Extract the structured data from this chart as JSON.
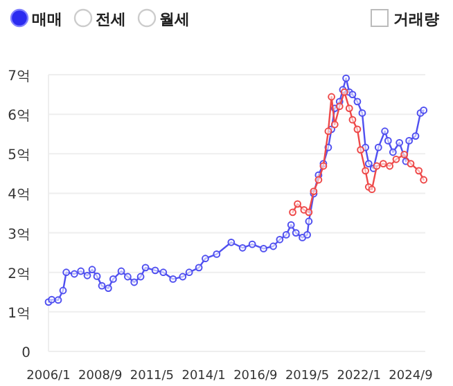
{
  "chart_data": {
    "type": "line",
    "marker": "circle",
    "grid": "y",
    "annotations": [
      "매매",
      "전세",
      "월세",
      "거래량"
    ],
    "xlim": [
      "2006-01",
      "2025-06"
    ],
    "xticks": [
      {
        "value": "2006-01",
        "label": "2006/1"
      },
      {
        "value": "2008-09",
        "label": "2008/9"
      },
      {
        "value": "2011-05",
        "label": "2011/5"
      },
      {
        "value": "2014-01",
        "label": "2014/1"
      },
      {
        "value": "2016-09",
        "label": "2016/9"
      },
      {
        "value": "2019-05",
        "label": "2019/5"
      },
      {
        "value": "2022-01",
        "label": "2022/1"
      },
      {
        "value": "2024-09",
        "label": "2024/9"
      }
    ],
    "ylim": [
      0,
      7
    ],
    "yticks": [
      0,
      {
        "value": 1,
        "label": "1억"
      },
      {
        "value": 2,
        "label": "2억"
      },
      {
        "value": 3,
        "label": "3억"
      },
      {
        "value": 4,
        "label": "4억"
      },
      {
        "value": 5,
        "label": "5억"
      },
      {
        "value": 6,
        "label": "6억"
      },
      {
        "value": 7,
        "label": "7억"
      }
    ],
    "series": [
      {
        "color": "#4f4ff0",
        "x": [
          "2006-01",
          "2006-03",
          "2006-07",
          "2006-10",
          "2006-12",
          "2007-05",
          "2007-09",
          "2008-01",
          "2008-04",
          "2008-07",
          "2008-10",
          "2009-02",
          "2009-05",
          "2009-10",
          "2010-02",
          "2010-06",
          "2010-10",
          "2011-01",
          "2011-07",
          "2011-12",
          "2012-06",
          "2012-12",
          "2013-04",
          "2013-10",
          "2014-02",
          "2014-09",
          "2015-06",
          "2016-01",
          "2016-07",
          "2017-02",
          "2017-08",
          "2017-12",
          "2018-04",
          "2018-07",
          "2018-10",
          "2019-02",
          "2019-05",
          "2019-06",
          "2019-09",
          "2019-12",
          "2020-03",
          "2020-06",
          "2020-08",
          "2020-10",
          "2021-01",
          "2021-03",
          "2021-05",
          "2021-07",
          "2021-09",
          "2021-12",
          "2022-03",
          "2022-05",
          "2022-07",
          "2022-10",
          "2023-01",
          "2023-05",
          "2023-07",
          "2023-10",
          "2024-02",
          "2024-06",
          "2024-08",
          "2024-12",
          "2025-03",
          "2025-05"
        ],
        "values": [
          1.25,
          1.31,
          1.3,
          1.54,
          2.0,
          1.96,
          2.03,
          1.92,
          2.07,
          1.9,
          1.66,
          1.6,
          1.83,
          2.03,
          1.89,
          1.75,
          1.89,
          2.12,
          2.05,
          2.0,
          1.83,
          1.89,
          2.0,
          2.12,
          2.35,
          2.46,
          2.76,
          2.62,
          2.71,
          2.6,
          2.66,
          2.83,
          2.95,
          3.2,
          3.0,
          2.88,
          2.95,
          3.29,
          3.99,
          4.46,
          4.75,
          5.16,
          5.62,
          6.15,
          6.32,
          6.62,
          6.91,
          6.56,
          6.5,
          6.32,
          6.03,
          5.16,
          4.75,
          4.63,
          5.16,
          5.57,
          5.33,
          5.04,
          5.28,
          4.81,
          5.33,
          5.45,
          6.03,
          6.1
        ]
      },
      {
        "color": "#ee4848",
        "x": [
          "2018-08",
          "2018-11",
          "2019-03",
          "2019-06",
          "2019-09",
          "2019-12",
          "2020-03",
          "2020-06",
          "2020-08",
          "2020-10",
          "2021-01",
          "2021-04",
          "2021-07",
          "2021-09",
          "2021-12",
          "2022-02",
          "2022-05",
          "2022-07",
          "2022-09",
          "2022-12",
          "2023-04",
          "2023-08",
          "2023-12",
          "2024-05",
          "2024-09",
          "2025-02",
          "2025-05"
        ],
        "values": [
          3.52,
          3.73,
          3.58,
          3.52,
          4.05,
          4.34,
          4.69,
          5.57,
          6.44,
          5.74,
          6.2,
          6.56,
          6.15,
          5.86,
          5.62,
          5.1,
          4.57,
          4.16,
          4.1,
          4.69,
          4.75,
          4.69,
          4.86,
          4.98,
          4.75,
          4.57,
          4.34
        ]
      }
    ]
  }
}
